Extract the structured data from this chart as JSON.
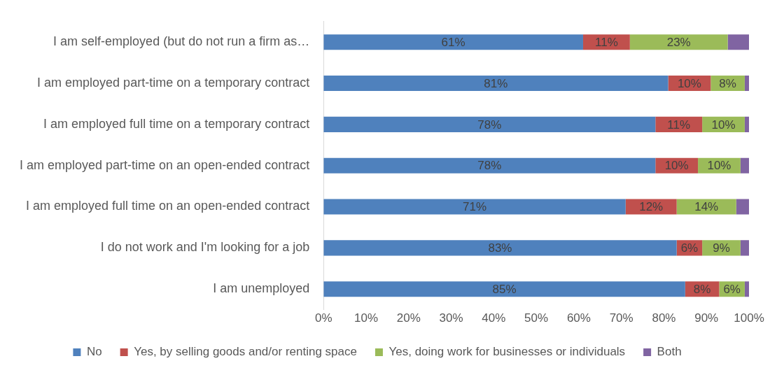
{
  "chart_data": {
    "type": "bar",
    "orientation": "horizontal",
    "stacked": true,
    "categories": [
      "I am self-employed (but do not run a firm as…",
      "I am employed part-time on a temporary contract",
      "I am employed full time on a temporary contract",
      "I am employed part-time on an open-ended contract",
      "I am employed full time on an open-ended contract",
      "I do not work and I'm looking for a job",
      "I am unemployed"
    ],
    "series": [
      {
        "name": "No",
        "color": "#4f81bd",
        "values": [
          61,
          81,
          78,
          78,
          71,
          83,
          85
        ],
        "value_labels": [
          "61%",
          "81%",
          "78%",
          "78%",
          "71%",
          "83%",
          "85%"
        ]
      },
      {
        "name": "Yes, by selling goods and/or renting space",
        "color": "#c0504d",
        "values": [
          11,
          10,
          11,
          10,
          12,
          6,
          8
        ],
        "value_labels": [
          "11%",
          "10%",
          "11%",
          "10%",
          "12%",
          "6%",
          "8%"
        ]
      },
      {
        "name": "Yes, doing work for businesses or individuals",
        "color": "#9bbb59",
        "values": [
          23,
          8,
          10,
          10,
          14,
          9,
          6
        ],
        "value_labels": [
          "23%",
          "8%",
          "10%",
          "10%",
          "14%",
          "9%",
          "6%"
        ]
      },
      {
        "name": "Both",
        "color": "#8064a2",
        "values": [
          5,
          1,
          1,
          2,
          3,
          2,
          1
        ]
      }
    ],
    "xlim": [
      0,
      100
    ],
    "xticks": [
      {
        "value": 0,
        "label": "0%"
      },
      {
        "value": 10,
        "label": "10%"
      },
      {
        "value": 20,
        "label": "20%"
      },
      {
        "value": 30,
        "label": "30%"
      },
      {
        "value": 40,
        "label": "40%"
      },
      {
        "value": 50,
        "label": "50%"
      },
      {
        "value": 60,
        "label": "60%"
      },
      {
        "value": 70,
        "label": "70%"
      },
      {
        "value": 80,
        "label": "80%"
      },
      {
        "value": 90,
        "label": "90%"
      },
      {
        "value": 100,
        "label": "100%"
      }
    ],
    "grid": false,
    "legend": "bottom"
  }
}
